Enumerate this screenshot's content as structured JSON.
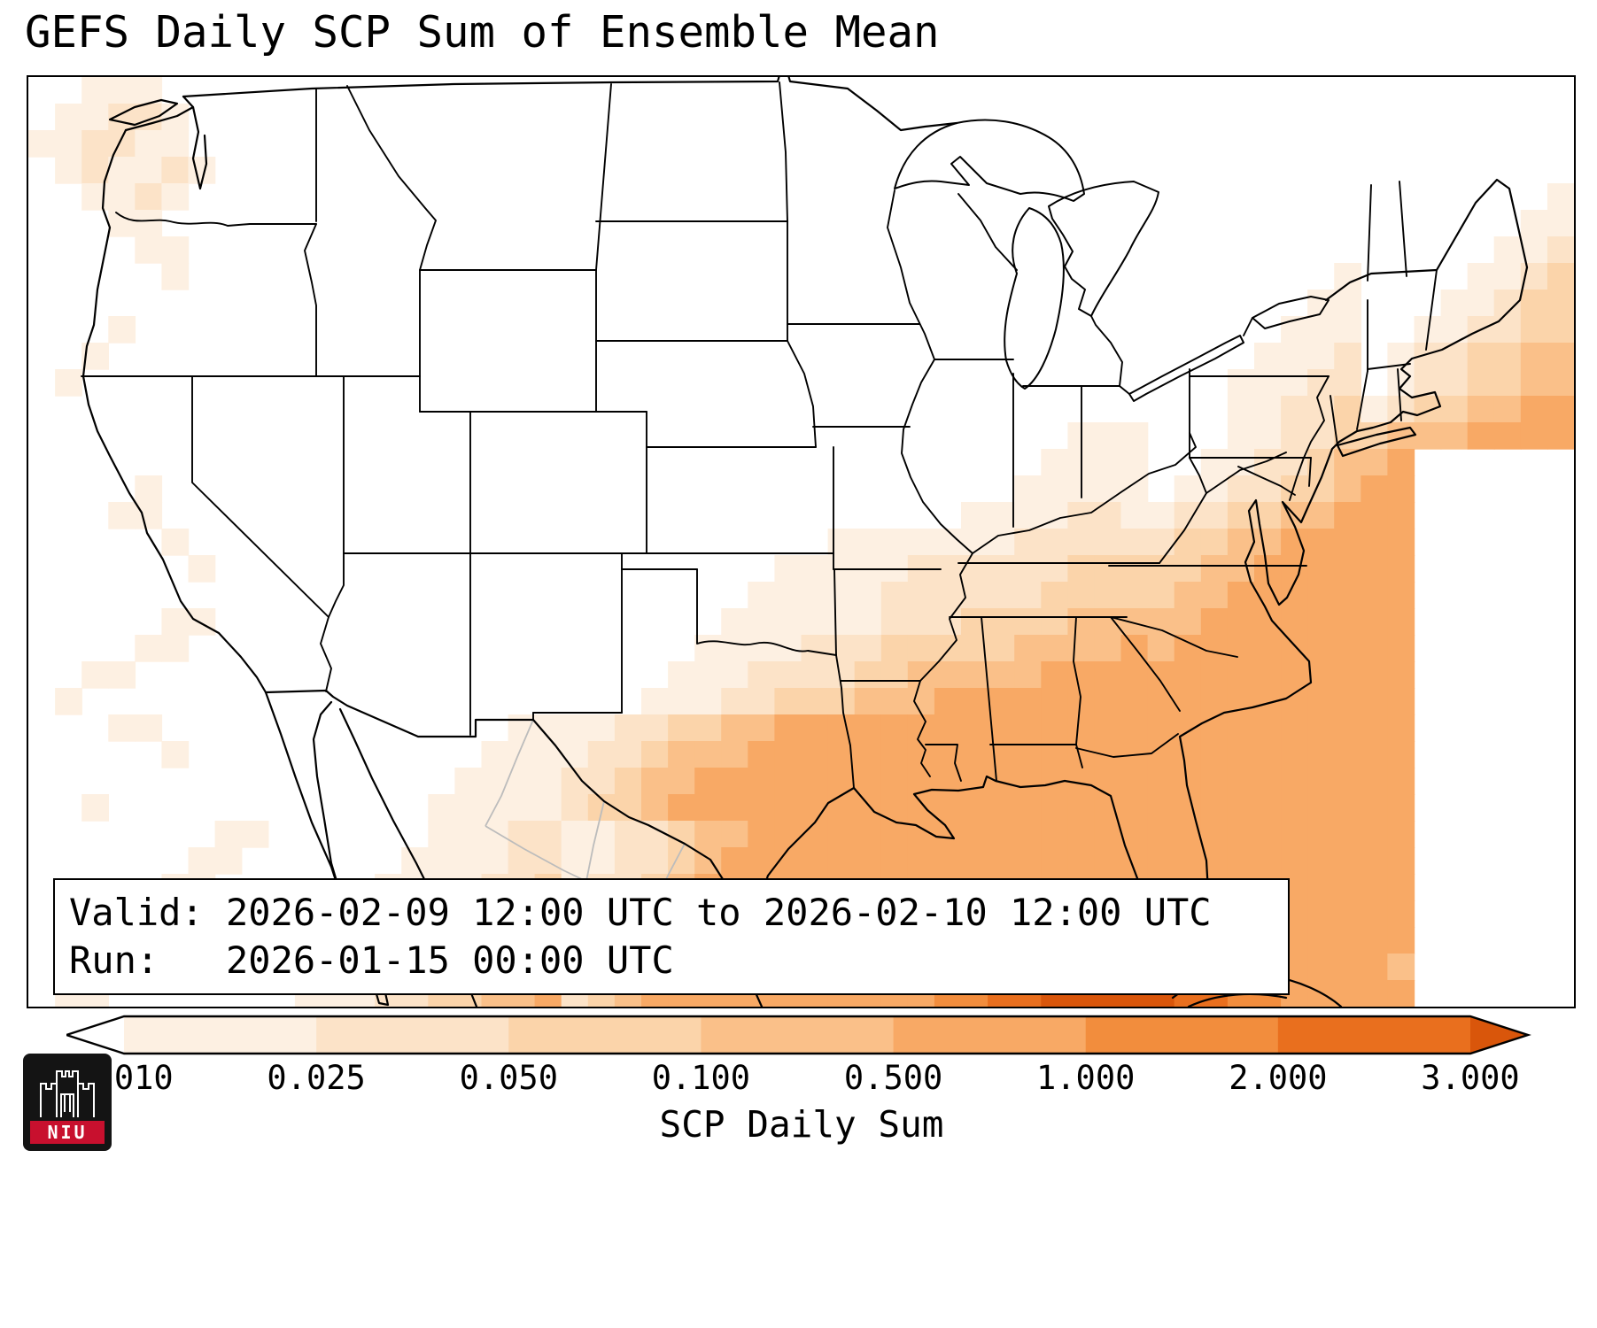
{
  "title": "GEFS Daily SCP Sum of Ensemble Mean",
  "info_box": {
    "line1": "Valid: 2026-02-09 12:00 UTC to 2026-02-10 12:00 UTC",
    "line2": "Run:   2026-01-15 00:00 UTC"
  },
  "colorbar": {
    "label": "SCP Daily Sum",
    "ticks": [
      "0.010",
      "0.025",
      "0.050",
      "0.100",
      "0.500",
      "1.000",
      "2.000",
      "3.000"
    ],
    "under_color": "#ffffff",
    "segment_colors": [
      "#fdf0e2",
      "#fce3c8",
      "#fbd4aa",
      "#fac089",
      "#f8a965",
      "#f28d3d",
      "#e96f1e"
    ],
    "over_color": "#d9560b",
    "outline_color": "#000000"
  },
  "logo": {
    "text": "NIU",
    "band_color": "#c8102e",
    "bg_color": "#141414"
  },
  "chart_data": {
    "type": "heatmap",
    "title": "GEFS Daily SCP Sum of Ensemble Mean",
    "units_label": "SCP Daily Sum",
    "valid": "2026-02-09 12:00 UTC to 2026-02-10 12:00 UTC",
    "run": "2026-01-15 00:00 UTC",
    "levels": [
      0.01,
      0.025,
      0.05,
      0.1,
      0.5,
      1.0,
      2.0,
      3.0
    ],
    "level_colors": [
      "#ffffff",
      "#fdf0e2",
      "#fce3c8",
      "#fbd4aa",
      "#fac089",
      "#f8a965",
      "#f28d3d",
      "#e96f1e",
      "#d9560b"
    ],
    "legend": "cell digits 0-8 index level_colors; 0 = below 0.010 (unshaded)",
    "grid": {
      "cols": 58,
      "rows": 35,
      "cells": [
        "0011100000000000000000000000000000000000000000000000000000",
        "0112210000000000000000000000000000000000000000000000000000",
        "1122110000000000000000000000000000000000000000000000000000",
        "0121121000000000000000000000000000000000000000000000000000",
        "0011210000000000000000000000000000000000000000000000000001",
        "0001100000000000000000000000000000000000000000000000000011",
        "0000110000000000000000000000000000000000000000000000000112",
        "0000010000000000000000000000000000000000000000000100001123",
        "0000000000000000000000000000000000000000000000001100011233",
        "0001000000000000000000000000000000000000000000011100112233",
        "0010000000000000000000000000000000000000000000111201223344",
        "0100000000000000000000000000000000000000000001112201223344",
        "0000000000000000000000000000000000000000000001122312334455",
        "0000000000000000000000000000000000000001110001122334445555?",
        "0000000000000000000000000000000000000011110011223445?",
        "0000100000000000000000000000000000000111110112233455?",
        "0001100000000000000000000000000000011112211223344555?",
        "0000010000000000000000000000001111111222222334455555?",
        "0000001000000000000000000000111112222223333344555555?",
        "0000000000000000000000000001111122222233333445555555?",
        "0000011000000000000000000011111122233334444455555555?",
        "0000110000000000000000000111122233333444454555555555?",
        "0011000000000000000000001112222334444455555555555555?",
        "0100000000000000000000011122333444555555555555555555?",
        "0001100000000000001111223344555555555555555555555555?",
        "0000010000000000011112234445555555555555555555555555?",
        "0000000000000000111122344555555555555555555555555555?",
        "0010000000000001111123345555555555555555555555555555?",
        "0000000110000001112211223445555555555555555555555555?",
        "0000001100000011112211223455555555555555555555555555?",
        "0000011000000111122312234555555555555555555555555555?",
        "0000110000001111223312334555555555555555655555555555?",
        "0001100000011112233423345555555555555666665555555555?",
        "0011000000111122334423445555555555555667776665555554?",
        "0110000000111223344523455555555555667788888776655555?"
      ]
    }
  }
}
